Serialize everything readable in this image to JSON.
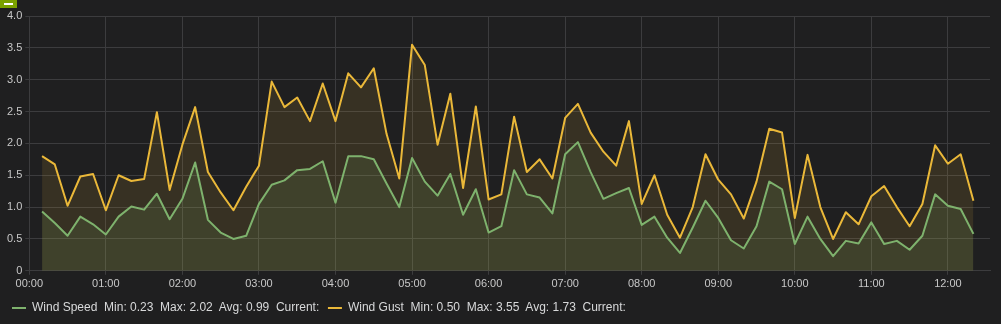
{
  "chart_data": {
    "type": "area",
    "legend": "bottom",
    "grid": true,
    "marker": "none",
    "line_style": "solid",
    "xlim": [
      0,
      12.55
    ],
    "ylim": [
      0,
      4
    ],
    "xticks": [
      {
        "value": 0,
        "label": "00:00"
      },
      {
        "value": 1,
        "label": "01:00"
      },
      {
        "value": 2,
        "label": "02:00"
      },
      {
        "value": 3,
        "label": "03:00"
      },
      {
        "value": 4,
        "label": "04:00"
      },
      {
        "value": 5,
        "label": "05:00"
      },
      {
        "value": 6,
        "label": "06:00"
      },
      {
        "value": 7,
        "label": "07:00"
      },
      {
        "value": 8,
        "label": "08:00"
      },
      {
        "value": 9,
        "label": "09:00"
      },
      {
        "value": 10,
        "label": "10:00"
      },
      {
        "value": 11,
        "label": "11:00"
      },
      {
        "value": 12,
        "label": "12:00"
      }
    ],
    "yticks": [
      0,
      0.5,
      {
        "value": 1,
        "label": "1.0"
      },
      1.5,
      {
        "value": 2,
        "label": "2.0"
      },
      2.5,
      {
        "value": 3,
        "label": "3.0"
      },
      3.5,
      {
        "value": 4,
        "label": "4.0"
      }
    ],
    "x": [
      0.1667,
      0.3333,
      0.5,
      0.6667,
      0.8333,
      1,
      1.1667,
      1.3333,
      1.5,
      1.6667,
      1.8333,
      2,
      2.1667,
      2.3333,
      2.5,
      2.6667,
      2.8333,
      3,
      3.1667,
      3.3333,
      3.5,
      3.6667,
      3.8333,
      4,
      4.1667,
      4.3333,
      4.5,
      4.6667,
      4.8333,
      5,
      5.1667,
      5.3333,
      5.5,
      5.6667,
      5.8333,
      6,
      6.1667,
      6.3333,
      6.5,
      6.6667,
      6.8333,
      7,
      7.1667,
      7.3333,
      7.5,
      7.6667,
      7.8333,
      8,
      8.1667,
      8.3333,
      8.5,
      8.6667,
      8.8333,
      9,
      9.1667,
      9.3333,
      9.5,
      9.6667,
      9.8333,
      10,
      10.1667,
      10.3333,
      10.5,
      10.6667,
      10.8333,
      11,
      11.1667,
      11.3333,
      11.5,
      11.6667,
      11.8333,
      12,
      12.1667,
      12.3333
    ],
    "series": [
      {
        "name": "Wind Speed  Min: 0.23  Max: 2.02  Avg: 0.99  Current:",
        "color": "#7eb26d",
        "values": [
          0.93,
          0.75,
          0.55,
          0.85,
          0.73,
          0.57,
          0.85,
          1.01,
          0.96,
          1.21,
          0.81,
          1.13,
          1.7,
          0.8,
          0.6,
          0.5,
          0.55,
          1.05,
          1.35,
          1.42,
          1.58,
          1.6,
          1.72,
          1.07,
          1.8,
          1.8,
          1.75,
          1.37,
          1.0,
          1.77,
          1.4,
          1.18,
          1.52,
          0.88,
          1.28,
          0.6,
          0.7,
          1.58,
          1.2,
          1.15,
          0.9,
          1.83,
          2.02,
          1.55,
          1.13,
          1.22,
          1.3,
          0.72,
          0.85,
          0.52,
          0.28,
          0.68,
          1.1,
          0.83,
          0.48,
          0.35,
          0.7,
          1.4,
          1.28,
          0.42,
          0.85,
          0.5,
          0.23,
          0.47,
          0.43,
          0.76,
          0.42,
          0.47,
          0.33,
          0.55,
          1.2,
          1.02,
          0.97,
          0.58
        ]
      },
      {
        "name": "Wind Gust  Min: 0.50  Max: 3.55  Avg: 1.73  Current:",
        "color": "#eab839",
        "values": [
          1.8,
          1.67,
          1.02,
          1.48,
          1.52,
          0.95,
          1.5,
          1.41,
          1.44,
          2.49,
          1.27,
          1.98,
          2.57,
          1.55,
          1.23,
          0.95,
          1.32,
          1.65,
          2.97,
          2.57,
          2.72,
          2.35,
          2.94,
          2.35,
          3.1,
          2.88,
          3.18,
          2.15,
          1.45,
          3.55,
          3.23,
          1.98,
          2.78,
          1.3,
          2.58,
          1.12,
          1.2,
          2.42,
          1.55,
          1.75,
          1.45,
          2.4,
          2.62,
          2.17,
          1.87,
          1.65,
          2.35,
          1.05,
          1.5,
          0.88,
          0.52,
          1.0,
          1.83,
          1.43,
          1.2,
          0.82,
          1.4,
          2.23,
          2.17,
          0.83,
          1.82,
          1.0,
          0.5,
          0.92,
          0.73,
          1.17,
          1.33,
          1.0,
          0.7,
          1.05,
          1.97,
          1.68,
          1.83,
          1.1
        ]
      }
    ]
  }
}
